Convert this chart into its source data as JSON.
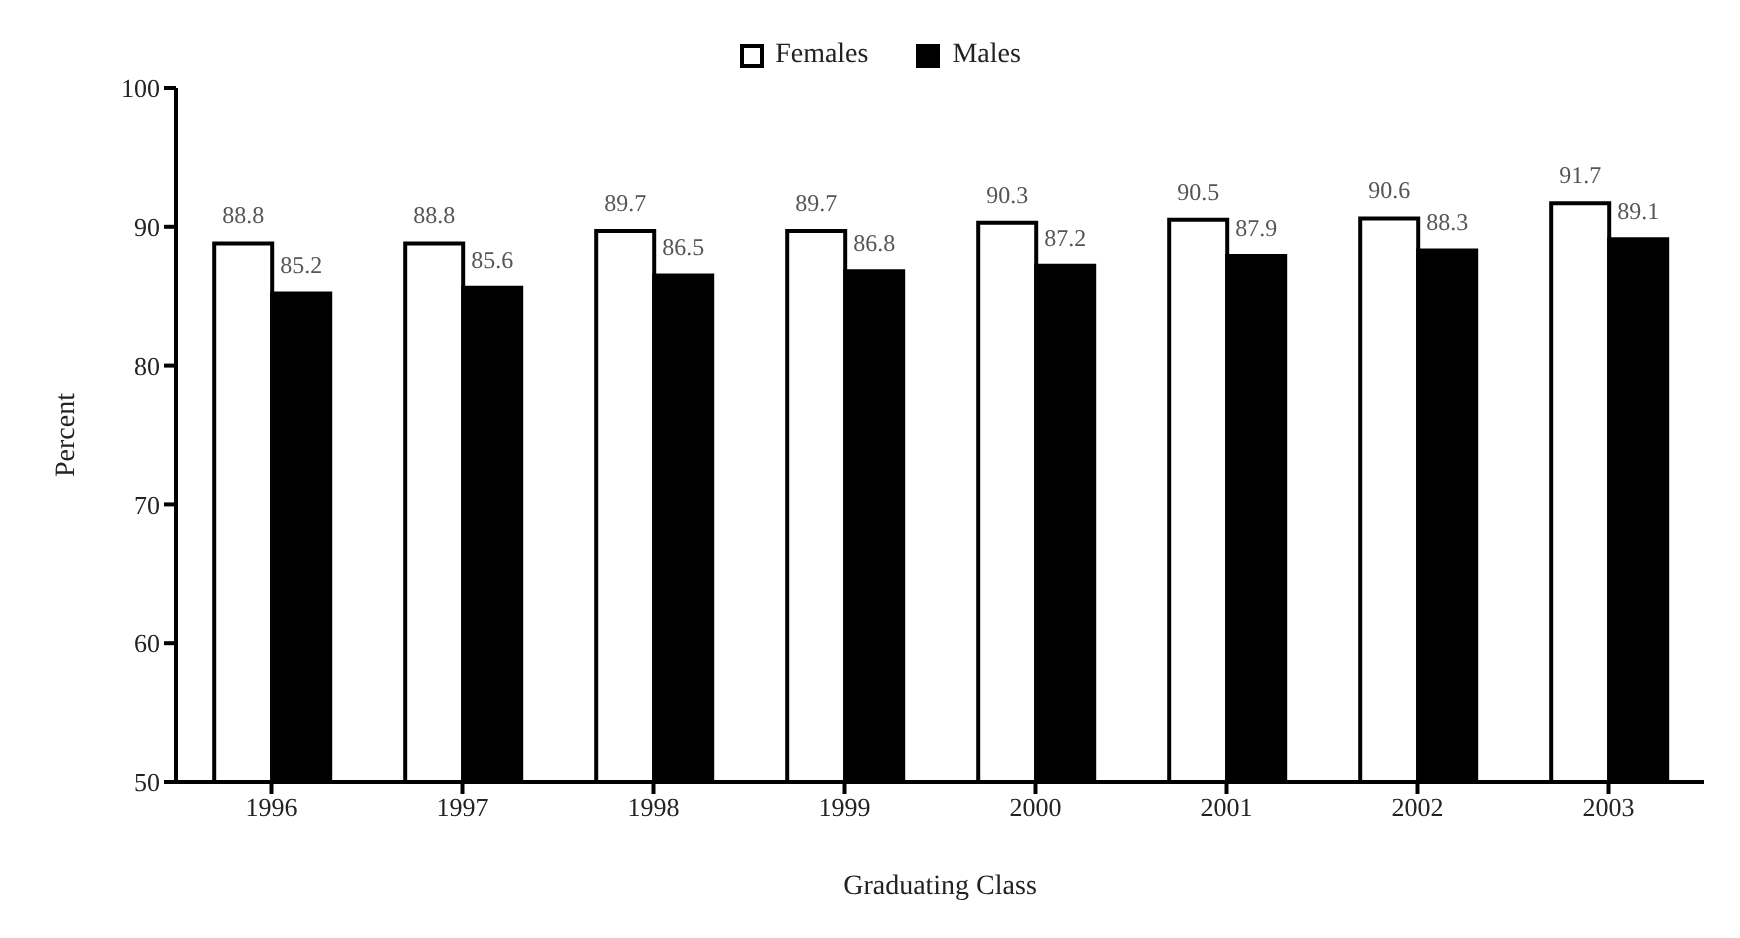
{
  "chart_data": {
    "type": "bar",
    "xlabel": "Graduating Class",
    "ylabel": "Percent",
    "categories": [
      "1996",
      "1997",
      "1998",
      "1999",
      "2000",
      "2001",
      "2002",
      "2003"
    ],
    "series": [
      {
        "name": "Females",
        "color": "#ffffff",
        "values": [
          88.8,
          88.8,
          89.7,
          89.7,
          90.3,
          90.5,
          90.6,
          91.7
        ]
      },
      {
        "name": "Males",
        "color": "#000000",
        "values": [
          85.2,
          85.6,
          86.5,
          86.8,
          87.2,
          87.9,
          88.3,
          89.1
        ]
      }
    ],
    "ylim": [
      50,
      100
    ],
    "yticks": [
      50,
      60,
      70,
      80,
      90,
      100
    ],
    "grid": false,
    "legend": "top right",
    "data_labels": true
  }
}
